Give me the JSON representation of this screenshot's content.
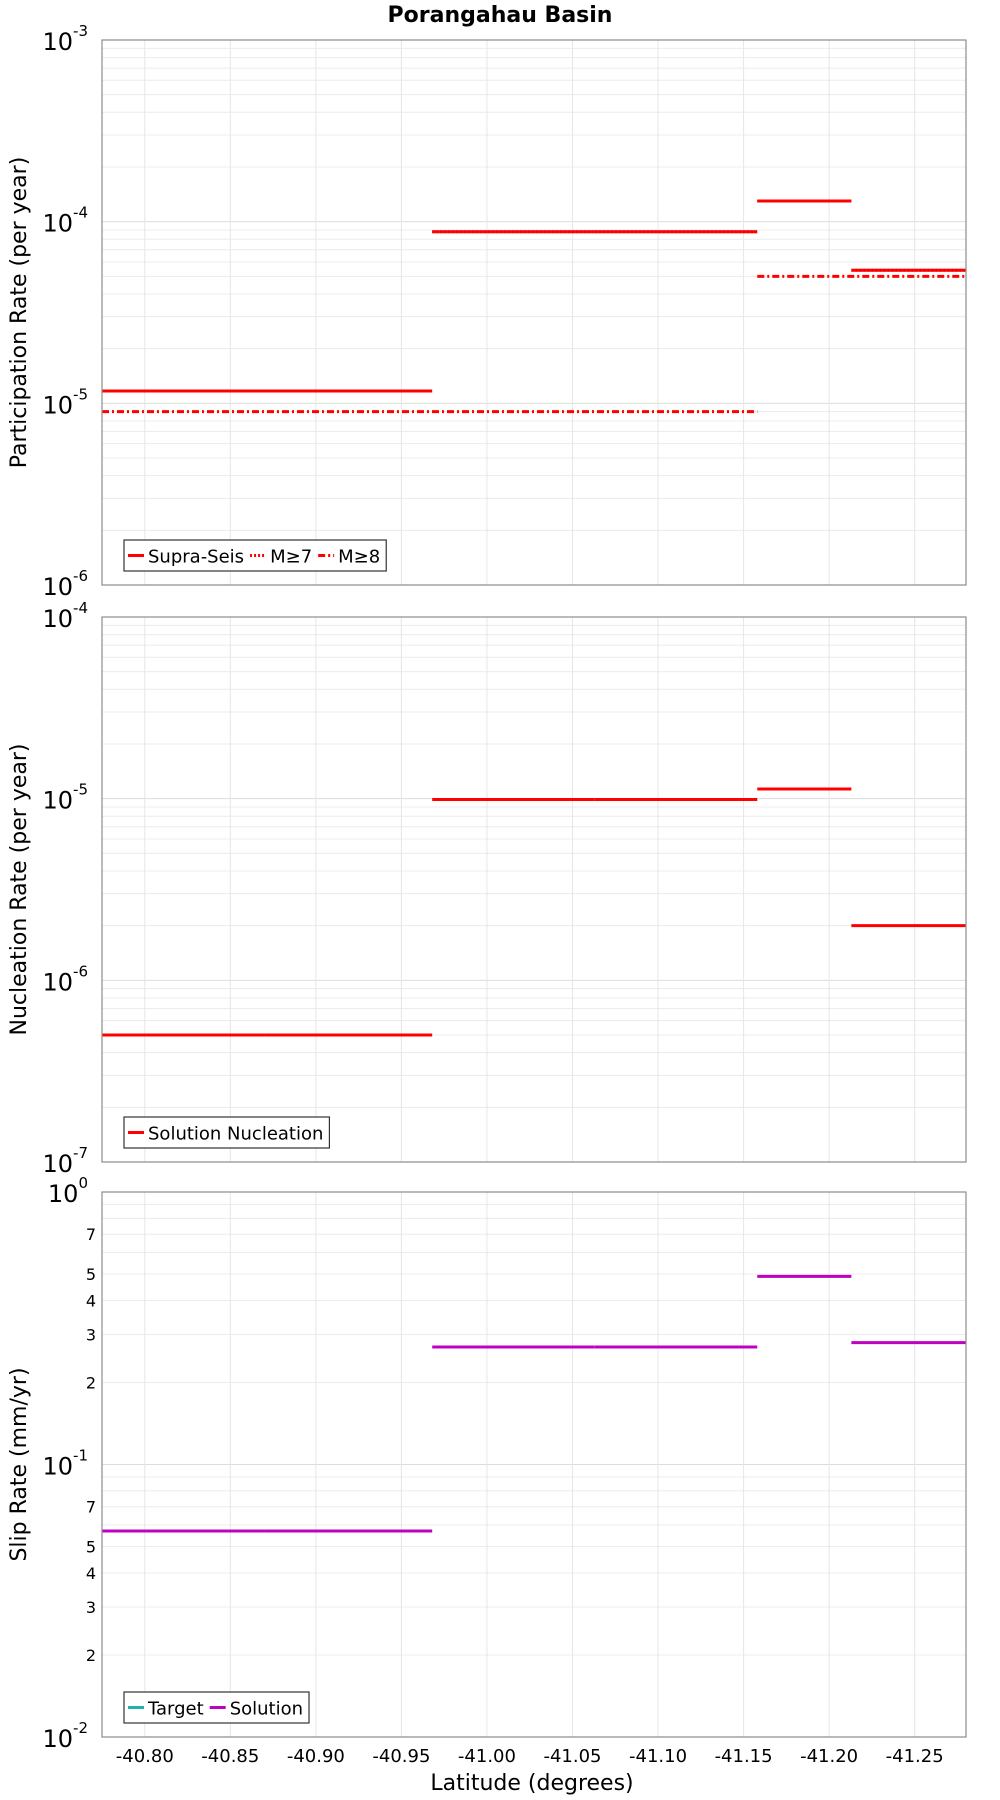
{
  "chart_data": {
    "title": "Porangahau Basin",
    "xlabel": "Latitude (degrees)",
    "xlim": [
      -40.775,
      -41.28
    ],
    "xticks": [
      -40.8,
      -40.85,
      -40.9,
      -40.95,
      -41.0,
      -41.05,
      -41.1,
      -41.15,
      -41.2,
      -41.25
    ],
    "xtick_labels": [
      "-40.80",
      "-40.85",
      "-40.90",
      "-40.95",
      "-41.00",
      "-41.05",
      "-41.10",
      "-41.15",
      "-41.20",
      "-41.25"
    ],
    "panels": [
      {
        "type": "line",
        "scale": "log",
        "ylabel": "Participation Rate (per year)",
        "ylim_exp": [
          -6,
          -3
        ],
        "tick_base": "10",
        "major_tick_exponents": [
          "-6",
          "-5",
          "-4",
          "-3"
        ],
        "minor_tick_labels": false,
        "legend": [
          {
            "name": "Supra-Seis",
            "style": "solid"
          },
          {
            "name": "M≥7",
            "style": "dotted"
          },
          {
            "name": "M≥8",
            "style": "dashdot"
          }
        ],
        "series": [
          {
            "name": "Supra-Seis",
            "color": "#ff0000",
            "style": "solid",
            "segments": [
              {
                "x0": -40.775,
                "x1": -40.87,
                "y": 1.17e-05
              },
              {
                "x0": -40.87,
                "x1": -40.968,
                "y": 1.17e-05
              },
              {
                "x0": -40.968,
                "x1": -41.063,
                "y": 8.8e-05
              },
              {
                "x0": -41.063,
                "x1": -41.158,
                "y": 8.8e-05
              },
              {
                "x0": -41.158,
                "x1": -41.213,
                "y": 0.00013
              },
              {
                "x0": -41.213,
                "x1": -41.28,
                "y": 5.4e-05
              }
            ]
          },
          {
            "name": "M≥7",
            "color": "#ff0000",
            "style": "dotted",
            "segments": [
              {
                "x0": -40.775,
                "x1": -40.87,
                "y": 1.17e-05
              },
              {
                "x0": -40.87,
                "x1": -40.968,
                "y": 1.17e-05
              },
              {
                "x0": -40.968,
                "x1": -41.063,
                "y": 8.8e-05
              },
              {
                "x0": -41.063,
                "x1": -41.158,
                "y": 8.8e-05
              },
              {
                "x0": -41.158,
                "x1": -41.213,
                "y": 0.00013
              },
              {
                "x0": -41.213,
                "x1": -41.28,
                "y": 5.4e-05
              }
            ]
          },
          {
            "name": "M≥8",
            "color": "#ff0000",
            "style": "dashdot",
            "segments": [
              {
                "x0": -40.775,
                "x1": -41.158,
                "y": 9e-06
              },
              {
                "x0": -41.158,
                "x1": -41.28,
                "y": 5e-05
              }
            ]
          }
        ]
      },
      {
        "type": "line",
        "scale": "log",
        "ylabel": "Nucleation Rate (per year)",
        "ylim_exp": [
          -7,
          -4
        ],
        "tick_base": "10",
        "major_tick_exponents": [
          "-7",
          "-6",
          "-5",
          "-4"
        ],
        "minor_tick_labels": false,
        "legend": [
          {
            "name": "Solution Nucleation",
            "style": "solid"
          }
        ],
        "series": [
          {
            "name": "Solution Nucleation",
            "color": "#ff0000",
            "style": "solid",
            "segments": [
              {
                "x0": -40.775,
                "x1": -40.87,
                "y": 5e-07
              },
              {
                "x0": -40.87,
                "x1": -40.968,
                "y": 5e-07
              },
              {
                "x0": -40.968,
                "x1": -41.063,
                "y": 9.9e-06
              },
              {
                "x0": -41.063,
                "x1": -41.158,
                "y": 9.9e-06
              },
              {
                "x0": -41.158,
                "x1": -41.213,
                "y": 1.13e-05
              },
              {
                "x0": -41.213,
                "x1": -41.28,
                "y": 2e-06
              }
            ]
          }
        ]
      },
      {
        "type": "line",
        "scale": "log",
        "ylabel": "Slip Rate (mm/yr)",
        "ylim_exp": [
          -2,
          0
        ],
        "tick_base": "10",
        "major_tick_exponents": [
          "-2",
          "-1",
          "0"
        ],
        "minor_tick_labels": true,
        "legend": [
          {
            "name": "Target",
            "style": "solid"
          },
          {
            "name": "Solution",
            "style": "solid"
          }
        ],
        "series": [
          {
            "name": "Target",
            "color": "#20b2aa",
            "style": "solid",
            "segments": []
          },
          {
            "name": "Solution",
            "color": "#c000c0",
            "style": "solid",
            "segments": [
              {
                "x0": -40.775,
                "x1": -40.87,
                "y": 0.057
              },
              {
                "x0": -40.87,
                "x1": -40.968,
                "y": 0.057
              },
              {
                "x0": -40.968,
                "x1": -41.063,
                "y": 0.27
              },
              {
                "x0": -41.063,
                "x1": -41.158,
                "y": 0.27
              },
              {
                "x0": -41.158,
                "x1": -41.213,
                "y": 0.49
              },
              {
                "x0": -41.213,
                "x1": -41.28,
                "y": 0.28
              }
            ]
          }
        ]
      }
    ]
  }
}
